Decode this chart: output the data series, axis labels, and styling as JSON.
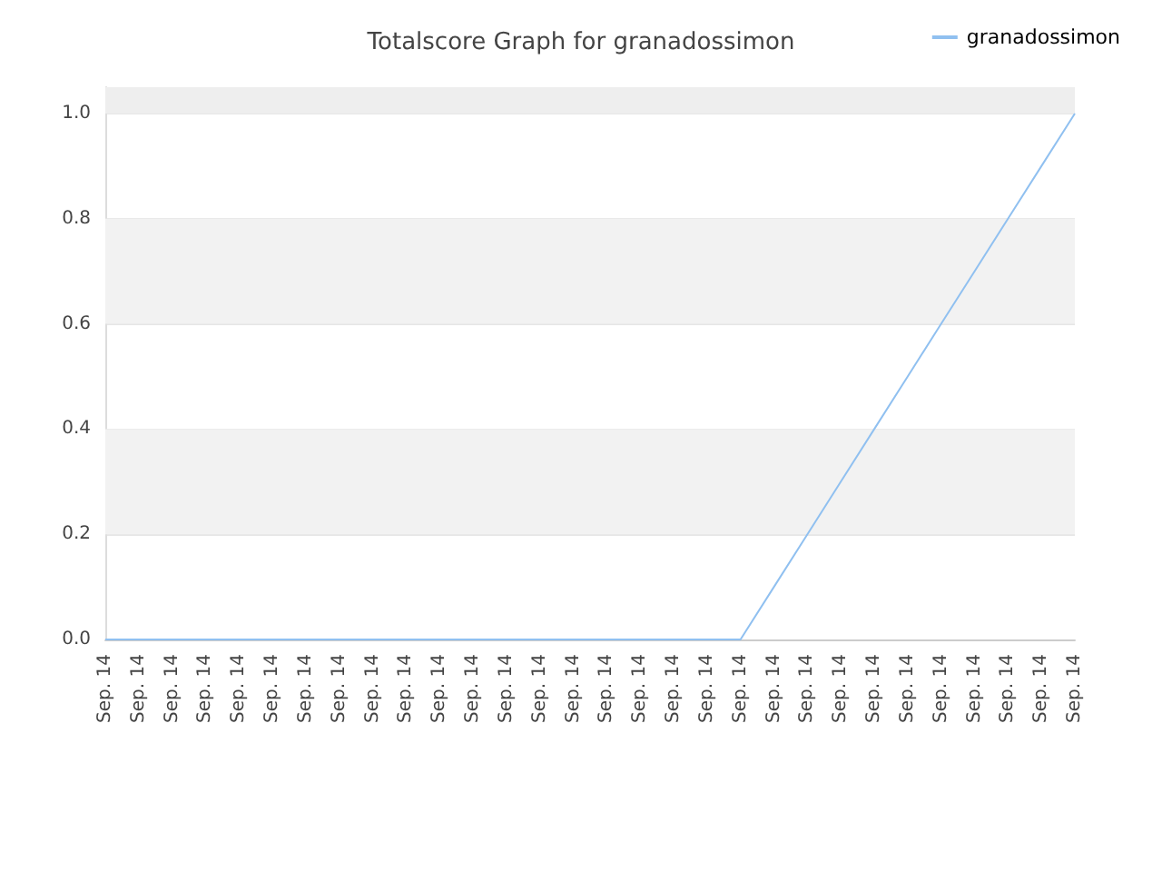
{
  "chart_data": {
    "type": "line",
    "title": "Totalscore Graph for granadossimon",
    "categories": [
      "Sep. 14",
      "Sep. 14",
      "Sep. 14",
      "Sep. 14",
      "Sep. 14",
      "Sep. 14",
      "Sep. 14",
      "Sep. 14",
      "Sep. 14",
      "Sep. 14",
      "Sep. 14",
      "Sep. 14",
      "Sep. 14",
      "Sep. 14",
      "Sep. 14",
      "Sep. 14",
      "Sep. 14",
      "Sep. 14",
      "Sep. 14",
      "Sep. 14",
      "Sep. 14",
      "Sep. 14",
      "Sep. 14",
      "Sep. 14",
      "Sep. 14",
      "Sep. 14",
      "Sep. 14",
      "Sep. 14",
      "Sep. 14",
      "Sep. 14"
    ],
    "series": [
      {
        "name": "granadossimon",
        "color": "#90c0f0",
        "values": [
          0,
          0,
          0,
          0,
          0,
          0,
          0,
          0,
          0,
          0,
          0,
          0,
          0,
          0,
          0,
          0,
          0,
          0,
          0,
          0,
          0.1,
          0.2,
          0.3,
          0.4,
          0.5,
          0.6,
          0.7,
          0.8,
          0.9,
          1.0
        ]
      }
    ],
    "ylim": [
      0,
      1.05
    ],
    "yticks": [
      {
        "value": 0,
        "label": "0.0"
      },
      0.2,
      0.4,
      0.6,
      0.8,
      {
        "value": 1,
        "label": "1.0"
      }
    ],
    "bands": [
      {
        "axis": "y",
        "from": 0.2,
        "to": 0.4,
        "color": "#f2f2f2"
      },
      {
        "axis": "y",
        "from": 0.6,
        "to": 0.8,
        "color": "#f2f2f2"
      },
      {
        "axis": "y",
        "from": 1.0,
        "to": 1.05,
        "color": "#eeeeee"
      }
    ],
    "grid": "y",
    "legend": "top right",
    "marker": "none",
    "line_style": "solid"
  }
}
